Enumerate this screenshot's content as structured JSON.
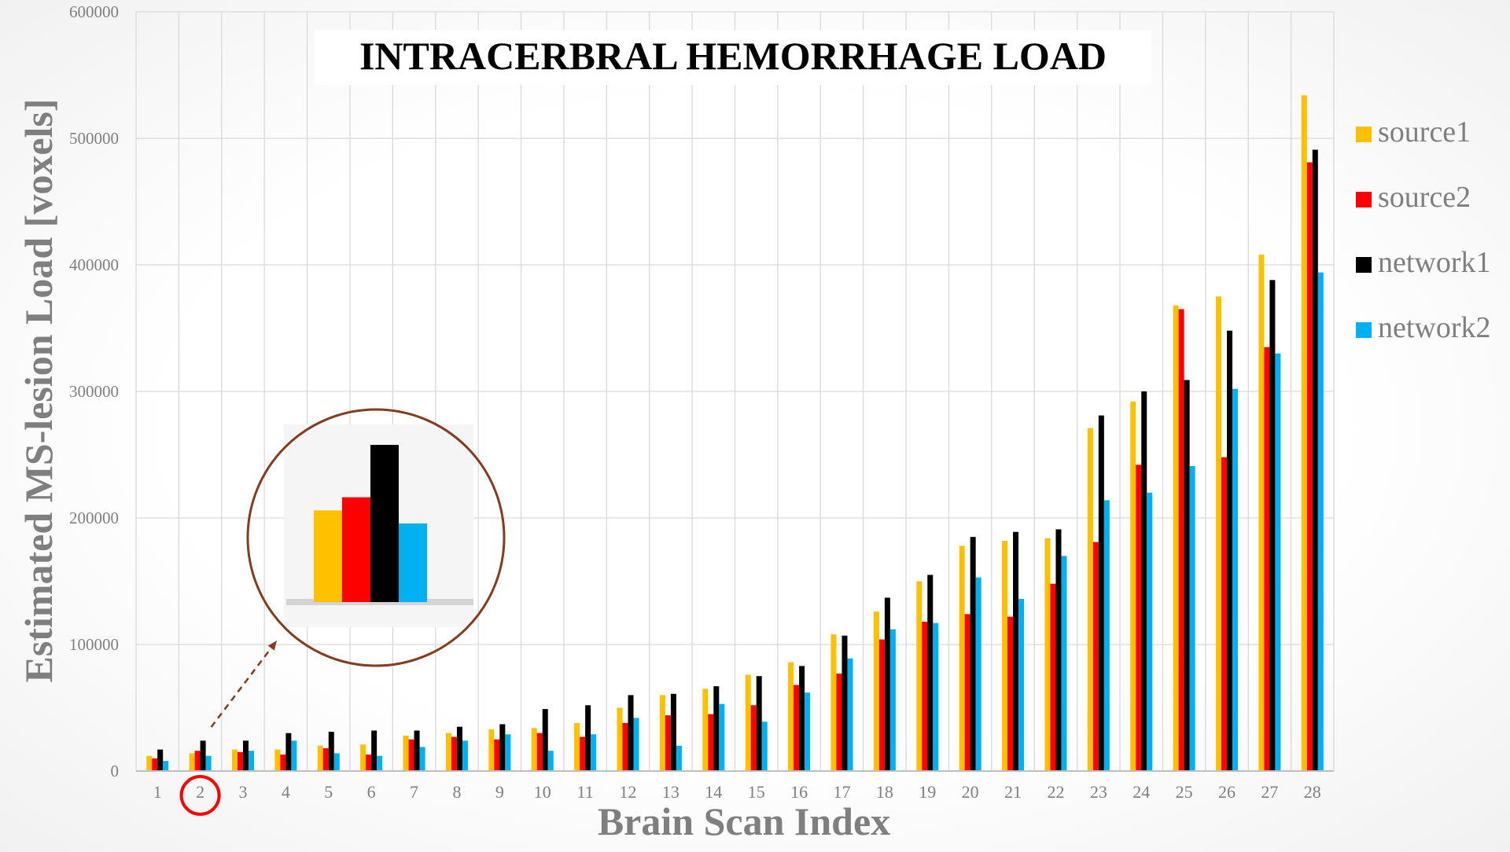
{
  "chart_data": {
    "type": "bar",
    "title": "INTRACERBRAL HEMORRHAGE LOAD",
    "xlabel": "Brain Scan Index",
    "ylabel": "Estimated MS-lesion Load [voxels]",
    "ylim": [
      0,
      600000
    ],
    "yticks": [
      "0",
      "100000",
      "200000",
      "300000",
      "400000",
      "500000",
      "600000"
    ],
    "grid": true,
    "legend_position": "right",
    "highlighted_category": "2",
    "categories": [
      "1",
      "2",
      "3",
      "4",
      "5",
      "6",
      "7",
      "8",
      "9",
      "10",
      "11",
      "12",
      "13",
      "14",
      "15",
      "16",
      "17",
      "18",
      "19",
      "20",
      "21",
      "22",
      "23",
      "24",
      "25",
      "26",
      "27",
      "28"
    ],
    "series": [
      {
        "name": "source1",
        "color": "#FFC000",
        "values": [
          12000,
          14000,
          17000,
          17000,
          20000,
          21000,
          28000,
          30000,
          33000,
          34000,
          38000,
          50000,
          60000,
          65000,
          76000,
          86000,
          108000,
          126000,
          150000,
          178000,
          182000,
          184000,
          271000,
          292000,
          368000,
          375000,
          408000,
          534000
        ]
      },
      {
        "name": "source2",
        "color": "#FF0000",
        "values": [
          10000,
          16000,
          15000,
          13000,
          18000,
          13000,
          25000,
          27000,
          25000,
          30000,
          27000,
          38000,
          44000,
          45000,
          52000,
          68000,
          77000,
          104000,
          118000,
          124000,
          122000,
          148000,
          181000,
          242000,
          365000,
          248000,
          335000,
          481000
        ]
      },
      {
        "name": "network1",
        "color": "#000000",
        "values": [
          17000,
          24000,
          24000,
          30000,
          31000,
          32000,
          32000,
          35000,
          37000,
          49000,
          52000,
          60000,
          61000,
          67000,
          75000,
          83000,
          107000,
          137000,
          155000,
          185000,
          189000,
          191000,
          281000,
          300000,
          309000,
          348000,
          388000,
          491000
        ]
      },
      {
        "name": "network2",
        "color": "#00B0F0",
        "values": [
          8000,
          12000,
          16000,
          24000,
          14000,
          12000,
          19000,
          24000,
          29000,
          16000,
          29000,
          42000,
          20000,
          53000,
          39000,
          62000,
          89000,
          112000,
          117000,
          153000,
          136000,
          170000,
          214000,
          220000,
          241000,
          302000,
          330000,
          394000
        ]
      }
    ],
    "inset_zoom": {
      "category": "2",
      "values": [
        14000,
        16000,
        24000,
        12000
      ]
    }
  }
}
